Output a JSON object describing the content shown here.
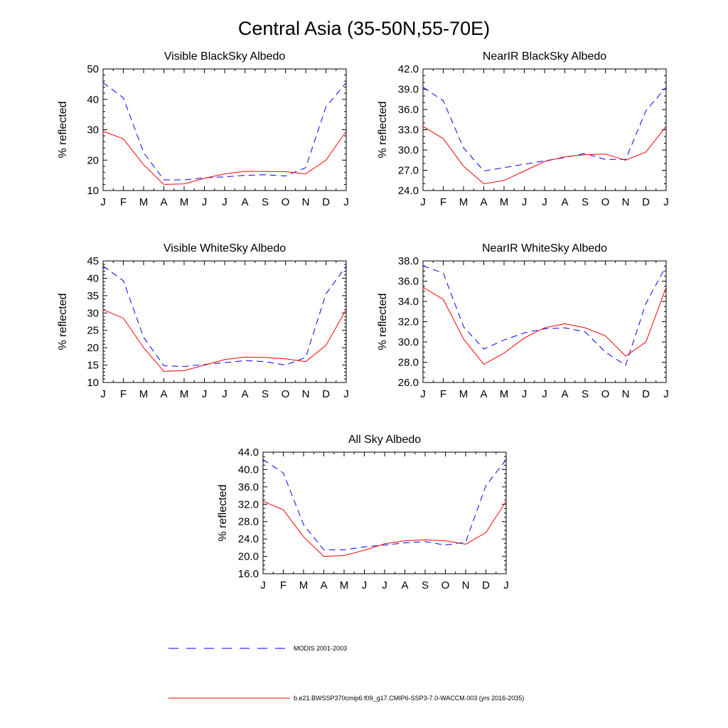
{
  "figure": {
    "title": "Central Asia (35-50N,55-70E)"
  },
  "legend": [
    {
      "label": "MODIS 2001-2003",
      "color": "#0000ff",
      "dash": "dashed"
    },
    {
      "label": "b.e21.BWSSP370cmip6.f09_g17.CMIP6-SSP3-7.0-WACCM.003 (yrs 2016-2035)",
      "color": "#ff0000",
      "dash": "solid"
    }
  ],
  "chart_data": [
    {
      "type": "line",
      "title": "Visible BlackSky Albedo",
      "ylabel": "% reflected",
      "x": [
        "J",
        "F",
        "M",
        "A",
        "M",
        "J",
        "J",
        "A",
        "S",
        "O",
        "N",
        "D",
        "J"
      ],
      "ylim": [
        10,
        50
      ],
      "yticks": [
        "10",
        "20",
        "30",
        "40",
        "50"
      ],
      "yminor": 5,
      "series": [
        {
          "name": "MODIS 2001-2003",
          "color": "#0000ff",
          "dash": "dashed",
          "values": [
            45.5,
            40.5,
            22.5,
            13.5,
            13.5,
            14.2,
            14.5,
            15.0,
            15.2,
            14.8,
            17.5,
            37.5,
            45.5
          ]
        },
        {
          "name": "b.e21.BWSSP370cmip6.f09_g17.CMIP6-SSP3-7.0-WACCM.003 (yrs 2016-2035)",
          "color": "#ff0000",
          "dash": "solid",
          "values": [
            29.5,
            27.0,
            18.5,
            12.0,
            12.2,
            14.0,
            15.5,
            16.3,
            16.3,
            16.2,
            15.5,
            20.0,
            29.5
          ]
        }
      ],
      "grid": false
    },
    {
      "type": "line",
      "title": "NearIR BlackSky Albedo",
      "ylabel": "% reflected",
      "x": [
        "J",
        "F",
        "M",
        "A",
        "M",
        "J",
        "J",
        "A",
        "S",
        "O",
        "N",
        "D",
        "J"
      ],
      "ylim": [
        24.0,
        42.0
      ],
      "yticks": [
        "24.0",
        "27.0",
        "30.0",
        "33.0",
        "36.0",
        "39.0",
        "42.0"
      ],
      "yminor": 3,
      "series": [
        {
          "name": "MODIS 2001-2003",
          "color": "#0000ff",
          "dash": "dashed",
          "values": [
            39.3,
            37.3,
            30.3,
            26.9,
            27.4,
            27.9,
            28.4,
            28.9,
            29.5,
            28.6,
            28.6,
            35.8,
            39.3
          ]
        },
        {
          "name": "b.e21.BWSSP370cmip6.f09_g17.CMIP6-SSP3-7.0-WACCM.003 (yrs 2016-2035)",
          "color": "#ff0000",
          "dash": "solid",
          "values": [
            33.5,
            31.7,
            27.6,
            25.0,
            25.5,
            26.9,
            28.3,
            29.0,
            29.3,
            29.4,
            28.5,
            29.7,
            33.5
          ]
        }
      ],
      "grid": false
    },
    {
      "type": "line",
      "title": "Visible WhiteSky Albedo",
      "ylabel": "% reflected",
      "x": [
        "J",
        "F",
        "M",
        "A",
        "M",
        "J",
        "J",
        "A",
        "S",
        "O",
        "N",
        "D",
        "J"
      ],
      "ylim": [
        10,
        45
      ],
      "yticks": [
        "10",
        "15",
        "20",
        "25",
        "30",
        "35",
        "40",
        "45"
      ],
      "yminor": 5,
      "series": [
        {
          "name": "MODIS 2001-2003",
          "color": "#0000ff",
          "dash": "dashed",
          "values": [
            43.5,
            39.3,
            23.0,
            14.8,
            14.6,
            15.2,
            15.7,
            16.3,
            16.0,
            15.0,
            17.2,
            35.5,
            43.5
          ]
        },
        {
          "name": "b.e21.BWSSP370cmip6.f09_g17.CMIP6-SSP3-7.0-WACCM.003 (yrs 2016-2035)",
          "color": "#ff0000",
          "dash": "solid",
          "values": [
            31.0,
            28.5,
            20.0,
            13.2,
            13.4,
            15.0,
            16.6,
            17.3,
            17.2,
            16.8,
            16.0,
            20.7,
            31.0
          ]
        }
      ],
      "grid": false
    },
    {
      "type": "line",
      "title": "NearIR WhiteSky Albedo",
      "ylabel": "% reflected",
      "x": [
        "J",
        "F",
        "M",
        "A",
        "M",
        "J",
        "J",
        "A",
        "S",
        "O",
        "N",
        "D",
        "J"
      ],
      "ylim": [
        26.0,
        38.0
      ],
      "yticks": [
        "26.0",
        "28.0",
        "30.0",
        "32.0",
        "34.0",
        "36.0",
        "38.0"
      ],
      "yminor": 4,
      "series": [
        {
          "name": "MODIS 2001-2003",
          "color": "#0000ff",
          "dash": "dashed",
          "values": [
            37.5,
            36.8,
            31.5,
            29.3,
            30.2,
            30.9,
            31.3,
            31.4,
            31.0,
            29.0,
            27.7,
            33.8,
            37.5
          ]
        },
        {
          "name": "b.e21.BWSSP370cmip6.f09_g17.CMIP6-SSP3-7.0-WACCM.003 (yrs 2016-2035)",
          "color": "#ff0000",
          "dash": "solid",
          "values": [
            35.4,
            34.2,
            30.3,
            27.8,
            28.9,
            30.4,
            31.4,
            31.8,
            31.4,
            30.6,
            28.6,
            30.0,
            35.4
          ]
        }
      ],
      "grid": false
    },
    {
      "type": "line",
      "title": "All Sky Albedo",
      "ylabel": "% reflected",
      "x": [
        "J",
        "F",
        "M",
        "A",
        "M",
        "J",
        "J",
        "A",
        "S",
        "O",
        "N",
        "D",
        "J"
      ],
      "ylim": [
        16.0,
        44.0
      ],
      "yticks": [
        "16.0",
        "20.0",
        "24.0",
        "28.0",
        "32.0",
        "36.0",
        "40.0",
        "44.0"
      ],
      "yminor": 4,
      "series": [
        {
          "name": "MODIS 2001-2003",
          "color": "#0000ff",
          "dash": "dashed",
          "values": [
            42.3,
            39.2,
            27.3,
            21.5,
            21.5,
            22.2,
            22.6,
            23.1,
            23.4,
            22.6,
            23.3,
            36.3,
            42.3
          ]
        },
        {
          "name": "b.e21.BWSSP370cmip6.f09_g17.CMIP6-SSP3-7.0-WACCM.003 (yrs 2016-2035)",
          "color": "#ff0000",
          "dash": "solid",
          "values": [
            32.7,
            30.7,
            24.5,
            20.0,
            20.2,
            21.4,
            22.9,
            23.6,
            23.8,
            23.6,
            22.8,
            25.5,
            32.7
          ]
        }
      ],
      "grid": false
    }
  ]
}
